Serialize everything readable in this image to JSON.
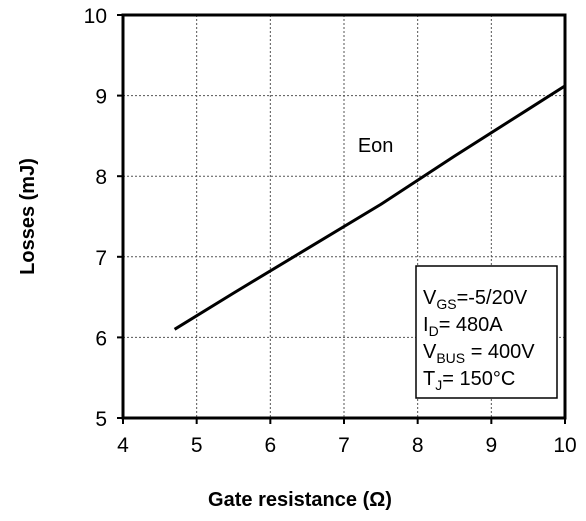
{
  "chart_data": {
    "type": "line",
    "title": "",
    "xlabel": "Gate resistance  (Ω)",
    "ylabel": "Losses  (mJ)",
    "xlim": [
      4,
      10
    ],
    "ylim": [
      5,
      10
    ],
    "xticks": [
      4,
      5,
      6,
      7,
      8,
      9,
      10
    ],
    "yticks": [
      5,
      6,
      7,
      8,
      9,
      10
    ],
    "grid": true,
    "grid_style": "dotted",
    "series": [
      {
        "name": "Eon",
        "color": "#000000",
        "x": [
          4.7,
          5.5,
          6.5,
          7.5,
          8.5,
          9.5,
          10.0
        ],
        "y": [
          6.1,
          6.55,
          7.1,
          7.65,
          8.25,
          8.83,
          9.12
        ]
      }
    ],
    "annotations": [
      {
        "text": "Eon",
        "x": 7.5,
        "y": 8.4
      }
    ],
    "conditions": [
      {
        "main": "V",
        "sub": "GS",
        "rest": "=-5/20V"
      },
      {
        "main": "I",
        "sub": "D",
        "rest": "= 480A"
      },
      {
        "main": "V",
        "sub": "BUS",
        "rest": " = 400V"
      },
      {
        "main": "T",
        "sub": "J",
        "rest": "= 150°C"
      }
    ]
  }
}
